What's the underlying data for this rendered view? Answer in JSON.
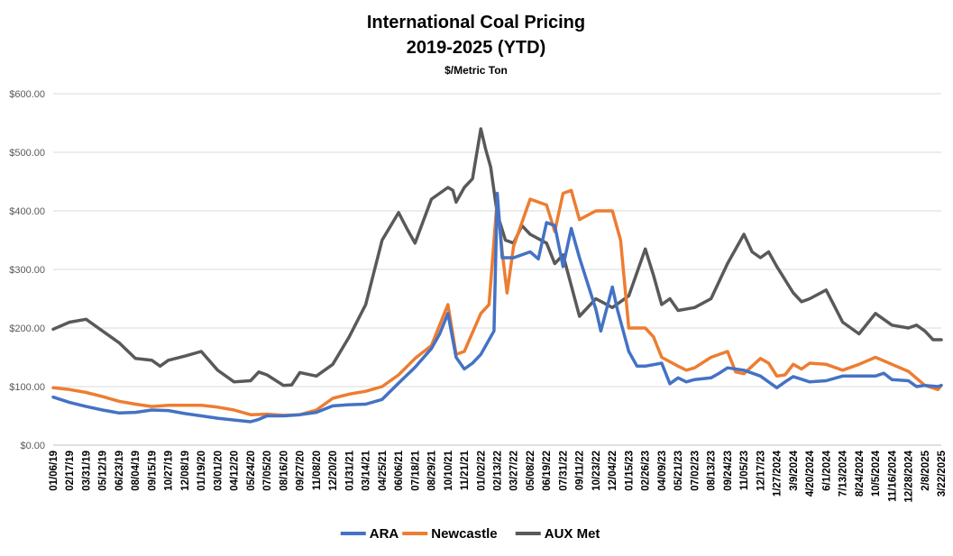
{
  "chart_data": {
    "type": "line",
    "title": "International Coal Pricing",
    "subtitle": "2019-2025 (YTD)",
    "units": "$/Metric Ton",
    "ylim": [
      0,
      600
    ],
    "y_ticks": [
      0,
      100,
      200,
      300,
      400,
      500,
      600
    ],
    "y_tick_labels": [
      "$0.00",
      "$100.00",
      "$200.00",
      "$300.00",
      "$400.00",
      "$500.00",
      "$600.00"
    ],
    "grid": "horizontal",
    "legend_position": "bottom",
    "x_tick_labels": [
      "01/06/19",
      "02/17/19",
      "03/31/19",
      "05/12/19",
      "06/23/19",
      "08/04/19",
      "09/15/19",
      "10/27/19",
      "12/08/19",
      "01/19/20",
      "03/01/20",
      "04/12/20",
      "05/24/20",
      "07/05/20",
      "08/16/20",
      "09/27/20",
      "11/08/20",
      "12/20/20",
      "01/31/21",
      "03/14/21",
      "04/25/21",
      "06/06/21",
      "07/18/21",
      "08/29/21",
      "10/10/21",
      "11/21/21",
      "01/02/22",
      "02/13/22",
      "03/27/22",
      "05/08/22",
      "06/19/22",
      "07/31/22",
      "09/11/22",
      "10/23/22",
      "12/04/22",
      "01/15/23",
      "02/26/23",
      "04/09/23",
      "05/21/23",
      "07/02/23",
      "08/13/23",
      "09/24/23",
      "11/05/23",
      "12/17/23",
      "1/27/2024",
      "3/9/2024",
      "4/20/2024",
      "6/1/2024",
      "7/13/2024",
      "8/24/2024",
      "10/5/2024",
      "11/16/2024",
      "12/28/2024",
      "2/8/2025",
      "3/22/2025"
    ],
    "series": [
      {
        "name": "ARA",
        "color": "#4472C4",
        "points": [
          [
            0,
            82
          ],
          [
            1,
            73
          ],
          [
            2,
            66
          ],
          [
            3,
            60
          ],
          [
            4,
            55
          ],
          [
            5,
            56
          ],
          [
            6,
            60
          ],
          [
            7,
            59
          ],
          [
            8,
            54
          ],
          [
            9,
            50
          ],
          [
            10,
            46
          ],
          [
            11,
            43
          ],
          [
            12,
            40
          ],
          [
            12.5,
            44
          ],
          [
            13,
            50
          ],
          [
            14,
            50
          ],
          [
            15,
            52
          ],
          [
            16,
            56
          ],
          [
            17,
            67
          ],
          [
            18,
            69
          ],
          [
            19,
            70
          ],
          [
            20,
            78
          ],
          [
            21,
            106
          ],
          [
            22,
            133
          ],
          [
            23,
            165
          ],
          [
            23.5,
            190
          ],
          [
            24,
            225
          ],
          [
            24.5,
            150
          ],
          [
            25,
            130
          ],
          [
            25.5,
            140
          ],
          [
            26,
            155
          ],
          [
            26.8,
            195
          ],
          [
            27,
            430
          ],
          [
            27.3,
            320
          ],
          [
            28,
            320
          ],
          [
            29,
            330
          ],
          [
            29.5,
            318
          ],
          [
            30,
            380
          ],
          [
            30.5,
            375
          ],
          [
            31,
            305
          ],
          [
            31.5,
            370
          ],
          [
            32,
            320
          ],
          [
            33,
            232
          ],
          [
            33.3,
            195
          ],
          [
            34,
            270
          ],
          [
            34.3,
            232
          ],
          [
            35,
            160
          ],
          [
            35.5,
            135
          ],
          [
            36,
            135
          ],
          [
            37,
            140
          ],
          [
            37.5,
            105
          ],
          [
            38,
            115
          ],
          [
            38.5,
            108
          ],
          [
            39,
            112
          ],
          [
            40,
            115
          ],
          [
            40.5,
            123
          ],
          [
            41,
            132
          ],
          [
            42,
            128
          ],
          [
            43,
            118
          ],
          [
            44,
            98
          ],
          [
            44.5,
            108
          ],
          [
            45,
            117
          ],
          [
            46,
            108
          ],
          [
            47,
            110
          ],
          [
            48,
            118
          ],
          [
            49,
            118
          ],
          [
            50,
            118
          ],
          [
            50.5,
            123
          ],
          [
            51,
            112
          ],
          [
            52,
            110
          ],
          [
            52.5,
            100
          ],
          [
            53,
            102
          ],
          [
            53.8,
            100
          ],
          [
            54,
            102
          ]
        ]
      },
      {
        "name": "Newcastle",
        "color": "#ED7D31",
        "points": [
          [
            0,
            98
          ],
          [
            1,
            95
          ],
          [
            2,
            90
          ],
          [
            3,
            83
          ],
          [
            4,
            75
          ],
          [
            5,
            70
          ],
          [
            6,
            66
          ],
          [
            7,
            68
          ],
          [
            8,
            68
          ],
          [
            9,
            68
          ],
          [
            10,
            65
          ],
          [
            11,
            60
          ],
          [
            12,
            52
          ],
          [
            13,
            53
          ],
          [
            14,
            51
          ],
          [
            15,
            52
          ],
          [
            16,
            60
          ],
          [
            17,
            80
          ],
          [
            18,
            87
          ],
          [
            19,
            92
          ],
          [
            20,
            100
          ],
          [
            21,
            120
          ],
          [
            22,
            148
          ],
          [
            23,
            170
          ],
          [
            24,
            240
          ],
          [
            24.5,
            155
          ],
          [
            25,
            160
          ],
          [
            26,
            225
          ],
          [
            26.5,
            240
          ],
          [
            27,
            420
          ],
          [
            27.3,
            330
          ],
          [
            27.6,
            260
          ],
          [
            28,
            340
          ],
          [
            29,
            420
          ],
          [
            30,
            410
          ],
          [
            30.5,
            365
          ],
          [
            31,
            430
          ],
          [
            31.5,
            435
          ],
          [
            32,
            385
          ],
          [
            33,
            400
          ],
          [
            34,
            400
          ],
          [
            34.5,
            350
          ],
          [
            35,
            200
          ],
          [
            36,
            200
          ],
          [
            36.5,
            185
          ],
          [
            37,
            150
          ],
          [
            38,
            135
          ],
          [
            38.5,
            128
          ],
          [
            39,
            132
          ],
          [
            40,
            150
          ],
          [
            41,
            160
          ],
          [
            41.5,
            125
          ],
          [
            42,
            122
          ],
          [
            43,
            148
          ],
          [
            43.5,
            140
          ],
          [
            44,
            118
          ],
          [
            44.5,
            120
          ],
          [
            45,
            138
          ],
          [
            45.5,
            130
          ],
          [
            46,
            140
          ],
          [
            47,
            138
          ],
          [
            48,
            128
          ],
          [
            49,
            138
          ],
          [
            50,
            150
          ],
          [
            51,
            138
          ],
          [
            52,
            126
          ],
          [
            53,
            102
          ],
          [
            53.8,
            95
          ],
          [
            54,
            102
          ]
        ]
      },
      {
        "name": "AUX Met",
        "color": "#595959",
        "points": [
          [
            0,
            198
          ],
          [
            1,
            210
          ],
          [
            2,
            215
          ],
          [
            3,
            195
          ],
          [
            4,
            175
          ],
          [
            5,
            148
          ],
          [
            6,
            145
          ],
          [
            6.5,
            135
          ],
          [
            7,
            145
          ],
          [
            8,
            152
          ],
          [
            9,
            160
          ],
          [
            10,
            128
          ],
          [
            11,
            108
          ],
          [
            12,
            110
          ],
          [
            12.5,
            125
          ],
          [
            13,
            120
          ],
          [
            14,
            102
          ],
          [
            14.5,
            103
          ],
          [
            15,
            124
          ],
          [
            16,
            118
          ],
          [
            17,
            138
          ],
          [
            18,
            185
          ],
          [
            19,
            240
          ],
          [
            20,
            350
          ],
          [
            21,
            397
          ],
          [
            21.5,
            370
          ],
          [
            22,
            345
          ],
          [
            23,
            420
          ],
          [
            24,
            440
          ],
          [
            24.3,
            435
          ],
          [
            24.5,
            415
          ],
          [
            25,
            440
          ],
          [
            25.5,
            455
          ],
          [
            26,
            540
          ],
          [
            26.3,
            505
          ],
          [
            26.6,
            475
          ],
          [
            27,
            395
          ],
          [
            27.5,
            350
          ],
          [
            28,
            345
          ],
          [
            28.5,
            375
          ],
          [
            29,
            360
          ],
          [
            30,
            345
          ],
          [
            30.5,
            310
          ],
          [
            31,
            325
          ],
          [
            32,
            220
          ],
          [
            33,
            250
          ],
          [
            34,
            235
          ],
          [
            35,
            255
          ],
          [
            36,
            335
          ],
          [
            36.5,
            290
          ],
          [
            37,
            240
          ],
          [
            37.5,
            250
          ],
          [
            38,
            230
          ],
          [
            39,
            235
          ],
          [
            40,
            250
          ],
          [
            41,
            310
          ],
          [
            42,
            360
          ],
          [
            42.5,
            330
          ],
          [
            43,
            320
          ],
          [
            43.5,
            330
          ],
          [
            44,
            305
          ],
          [
            45,
            260
          ],
          [
            45.5,
            245
          ],
          [
            46,
            250
          ],
          [
            47,
            265
          ],
          [
            48,
            210
          ],
          [
            49,
            190
          ],
          [
            50,
            225
          ],
          [
            51,
            205
          ],
          [
            52,
            200
          ],
          [
            52.5,
            205
          ],
          [
            53,
            195
          ],
          [
            53.5,
            180
          ],
          [
            54,
            180
          ]
        ]
      }
    ]
  }
}
